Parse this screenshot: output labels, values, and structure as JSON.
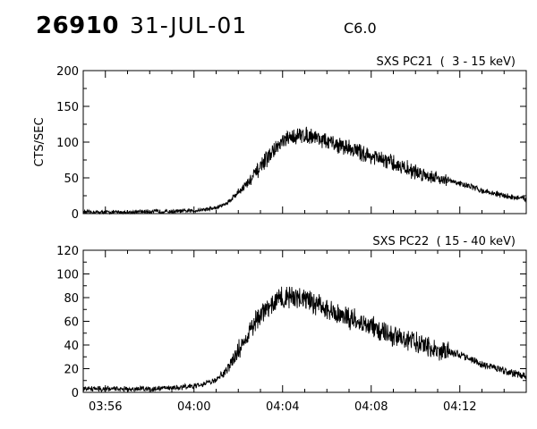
{
  "header": {
    "event_id": "26910",
    "date": "31-JUL-01",
    "flare_class": "C6.0"
  },
  "chart_data": [
    {
      "type": "line",
      "title": "SXS PC21  (  3 - 15 keV)",
      "ylabel": "CTS/SEC",
      "xlabel": "",
      "x_range": [
        "03:55",
        "04:15"
      ],
      "ylim": [
        0,
        200
      ],
      "yticks": [
        0,
        50,
        100,
        150,
        200
      ],
      "xticks": [],
      "noise_amplitude": 10,
      "x": [
        "03:55",
        "03:56",
        "03:57",
        "03:58",
        "03:59",
        "04:00",
        "04:01",
        "04:01:30",
        "04:02",
        "04:02:30",
        "04:03",
        "04:03:30",
        "04:04",
        "04:04:30",
        "04:05",
        "04:05:30",
        "04:06",
        "04:07",
        "04:08",
        "04:09",
        "04:10",
        "04:11",
        "04:12",
        "04:12:30",
        "04:13",
        "04:14",
        "04:15"
      ],
      "series": [
        {
          "values": [
            2,
            2,
            2,
            3,
            3,
            4,
            8,
            15,
            30,
            45,
            65,
            85,
            100,
            108,
            110,
            108,
            100,
            92,
            80,
            70,
            58,
            50,
            42,
            38,
            32,
            25,
            20
          ]
        }
      ]
    },
    {
      "type": "line",
      "title": "SXS PC22  ( 15 - 40 keV)",
      "ylabel": "",
      "xlabel": "",
      "x_range": [
        "03:55",
        "04:15"
      ],
      "ylim": [
        0,
        120
      ],
      "yticks": [
        0,
        20,
        40,
        60,
        80,
        100,
        120
      ],
      "xticks": [
        "03:56",
        "04:00",
        "04:04",
        "04:08",
        "04:12"
      ],
      "noise_amplitude": 8,
      "x": [
        "03:55",
        "03:56",
        "03:57",
        "03:58",
        "03:59",
        "04:00",
        "04:01",
        "04:01:30",
        "04:02",
        "04:02:30",
        "04:03",
        "04:03:30",
        "04:04",
        "04:04:30",
        "04:05",
        "04:05:30",
        "04:06",
        "04:07",
        "04:08",
        "04:09",
        "04:10",
        "04:11",
        "04:12",
        "04:12:30",
        "04:13",
        "04:14",
        "04:15"
      ],
      "series": [
        {
          "values": [
            3,
            3,
            3,
            3,
            4,
            5,
            10,
            20,
            35,
            50,
            65,
            75,
            80,
            80,
            78,
            75,
            70,
            63,
            55,
            48,
            42,
            36,
            32,
            28,
            24,
            18,
            14
          ]
        }
      ]
    }
  ]
}
